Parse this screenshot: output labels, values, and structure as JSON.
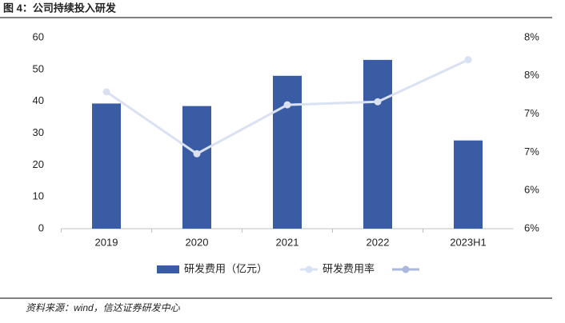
{
  "chart_data": {
    "type": "bar_line",
    "title": "图 4：公司持续投入研发",
    "source": "资料来源：wind，信达证券研发中心",
    "categories": [
      "2019",
      "2020",
      "2021",
      "2022",
      "2023H1"
    ],
    "series": [
      {
        "name": "研发费用（亿元）",
        "type": "bar",
        "color": "#3a5ca4",
        "values": [
          39.3,
          38.5,
          48.0,
          53.0,
          27.7
        ]
      },
      {
        "name": "研发费用率",
        "type": "line",
        "axis": "y2",
        "color": "#d9e1f2",
        "values": [
          7.79,
          6.98,
          7.62,
          7.66,
          8.21
        ]
      }
    ],
    "ylim": [
      0,
      60
    ],
    "yticks": [
      0,
      10,
      20,
      30,
      40,
      50,
      60
    ],
    "y2lim": [
      6.0,
      8.5
    ],
    "y2ticks": [
      {
        "value": 6.0,
        "label": "6%"
      },
      {
        "value": 6.5,
        "label": "6%"
      },
      {
        "value": 7.0,
        "label": "7%"
      },
      {
        "value": 7.5,
        "label": "7%"
      },
      {
        "value": 8.0,
        "label": "8%"
      },
      {
        "value": 8.5,
        "label": "8%"
      }
    ],
    "grid": false
  }
}
